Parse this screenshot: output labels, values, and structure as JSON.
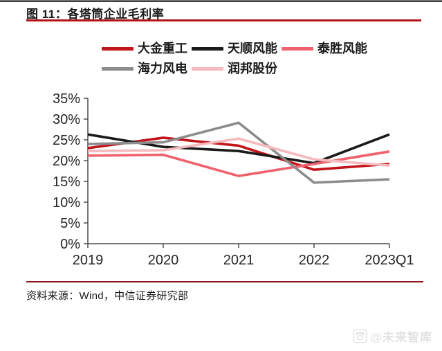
{
  "page": {
    "title": "图 11：各塔筒企业毛利率",
    "source": "资料来源：Wind，中信证券研究部",
    "watermark": "@未来智库",
    "colors": {
      "title_rule": "#b01218",
      "bottom_rule": "#8e1418",
      "axis": "#4d4d4d",
      "tick_text": "#262626",
      "watermark": "#e2e2e2"
    }
  },
  "chart_data": {
    "type": "line",
    "title": "各塔筒企业毛利率",
    "categories": [
      "2019",
      "2020",
      "2021",
      "2022",
      "2023Q1"
    ],
    "ylim": [
      0,
      35
    ],
    "y_ticks": [
      0,
      5,
      10,
      15,
      20,
      25,
      30,
      35
    ],
    "y_tick_suffix": "%",
    "grid": false,
    "legend_position": "top",
    "series": [
      {
        "name": "大金重工",
        "color": "#c2151b",
        "values": [
          23.0,
          25.5,
          23.6,
          17.8,
          19.2
        ]
      },
      {
        "name": "天顺风能",
        "color": "#1a1a1a",
        "values": [
          26.3,
          23.3,
          22.3,
          19.4,
          26.3
        ]
      },
      {
        "name": "泰胜风能",
        "color": "#f0616f",
        "values": [
          21.2,
          21.4,
          16.3,
          19.2,
          22.2
        ]
      },
      {
        "name": "海力风电",
        "color": "#8c8c8c",
        "values": [
          24.0,
          24.4,
          29.1,
          14.7,
          15.5
        ]
      },
      {
        "name": "润邦股份",
        "color": "#f6b9be",
        "values": [
          22.3,
          22.5,
          25.3,
          20.3,
          18.8
        ]
      }
    ]
  }
}
